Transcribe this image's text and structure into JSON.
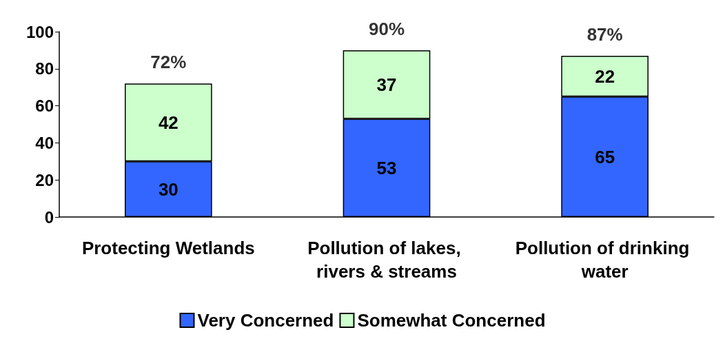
{
  "chart_data": {
    "type": "bar",
    "stacked": true,
    "categories": [
      "Protecting Wetlands",
      "Pollution of lakes, rivers & streams",
      "Pollution of drinking water"
    ],
    "series": [
      {
        "name": "Very Concerned",
        "color": "#3366ff",
        "values": [
          30,
          53,
          65
        ]
      },
      {
        "name": "Somewhat Concerned",
        "color": "#ccffcc",
        "values": [
          42,
          37,
          22
        ]
      }
    ],
    "totals": [
      "72%",
      "90%",
      "87%"
    ],
    "data_labels": true,
    "ylim": [
      0,
      100
    ],
    "yticks": [
      0,
      20,
      40,
      60,
      80,
      100
    ],
    "grid": false,
    "legend": "bottom"
  }
}
